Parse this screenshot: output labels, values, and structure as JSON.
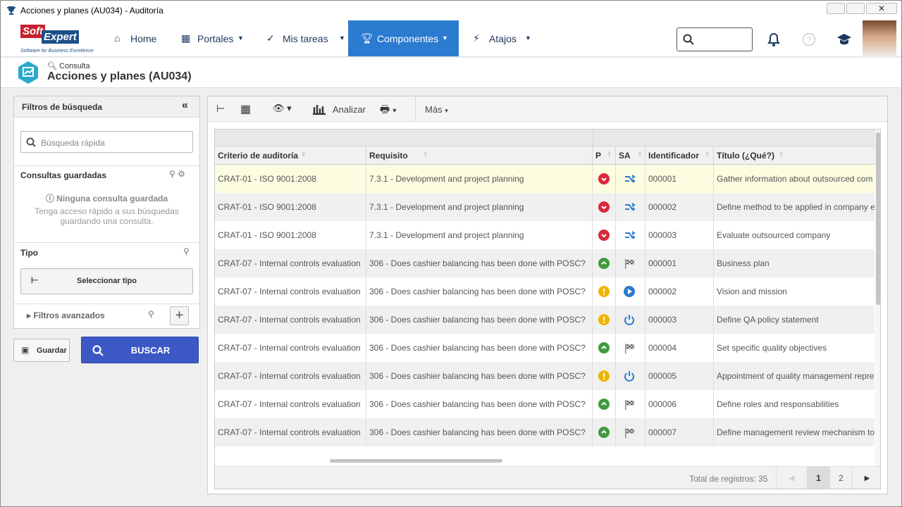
{
  "window": {
    "title": "Acciones y planes (AU034) - Auditoría"
  },
  "nav": {
    "logo": {
      "top": "Soft",
      "bottom": "Expert",
      "tagline": "Software for Business Excellence"
    },
    "items": [
      "Home",
      "Portales",
      "Mis tareas",
      "Componentes",
      "Atajos"
    ]
  },
  "breadcrumb": {
    "parent": "Consulta",
    "title": "Acciones y planes (AU034)"
  },
  "filters": {
    "title": "Filtros de búsqueda",
    "search_placeholder": "Búsqueda rápida",
    "saved": {
      "title": "Consultas guardadas",
      "empty": "Ninguna consulta guardada",
      "hint": "Tenga acceso rápido a sus búsquedas guardando una consulta."
    },
    "type": {
      "title": "Tipo",
      "button": "Seleccionar tipo"
    },
    "advanced": "Filtros avanzados",
    "save": "Guardar",
    "search": "BUSCAR"
  },
  "toolbar": {
    "analyze": "Analizar",
    "more": "Más"
  },
  "table": {
    "columns": [
      "Criterio de auditoría",
      "Requisito",
      "P",
      "SA",
      "Identificador",
      "Título (¿Qué?)"
    ],
    "rows": [
      [
        "CRAT-01 - ISO 9001:2008",
        "7.3.1 - Development and project planning",
        "000001",
        "Gather information about outsourced com"
      ],
      [
        "CRAT-01 - ISO 9001:2008",
        "7.3.1 - Development and project planning",
        "000002",
        "Define method to be applied in company e"
      ],
      [
        "CRAT-01 - ISO 9001:2008",
        "7.3.1 - Development and project planning",
        "000003",
        "Evaluate outsourced company"
      ],
      [
        "CRAT-07 - Internal controls evaluation",
        "306 - Does cashier balancing has been done with POSC?",
        "000001",
        "Business plan"
      ],
      [
        "CRAT-07 - Internal controls evaluation",
        "306 - Does cashier balancing has been done with POSC?",
        "000002",
        "Vision and mission"
      ],
      [
        "CRAT-07 - Internal controls evaluation",
        "306 - Does cashier balancing has been done with POSC?",
        "000003",
        "Define QA policy statement"
      ],
      [
        "CRAT-07 - Internal controls evaluation",
        "306 - Does cashier balancing has been done with POSC?",
        "000004",
        "Set specific quality objectives"
      ],
      [
        "CRAT-07 - Internal controls evaluation",
        "306 - Does cashier balancing has been done with POSC?",
        "000005",
        "Appointment of quality management repre"
      ],
      [
        "CRAT-07 - Internal controls evaluation",
        "306 - Does cashier balancing has been done with POSC?",
        "000006",
        "Define roles and responsabilities"
      ],
      [
        "CRAT-07 - Internal controls evaluation",
        "306 - Does cashier balancing has been done with POSC?",
        "000007",
        "Define management review mechanism to"
      ]
    ]
  },
  "footer": {
    "total": "Total de registros: 35",
    "pages": [
      "1",
      "2"
    ]
  }
}
